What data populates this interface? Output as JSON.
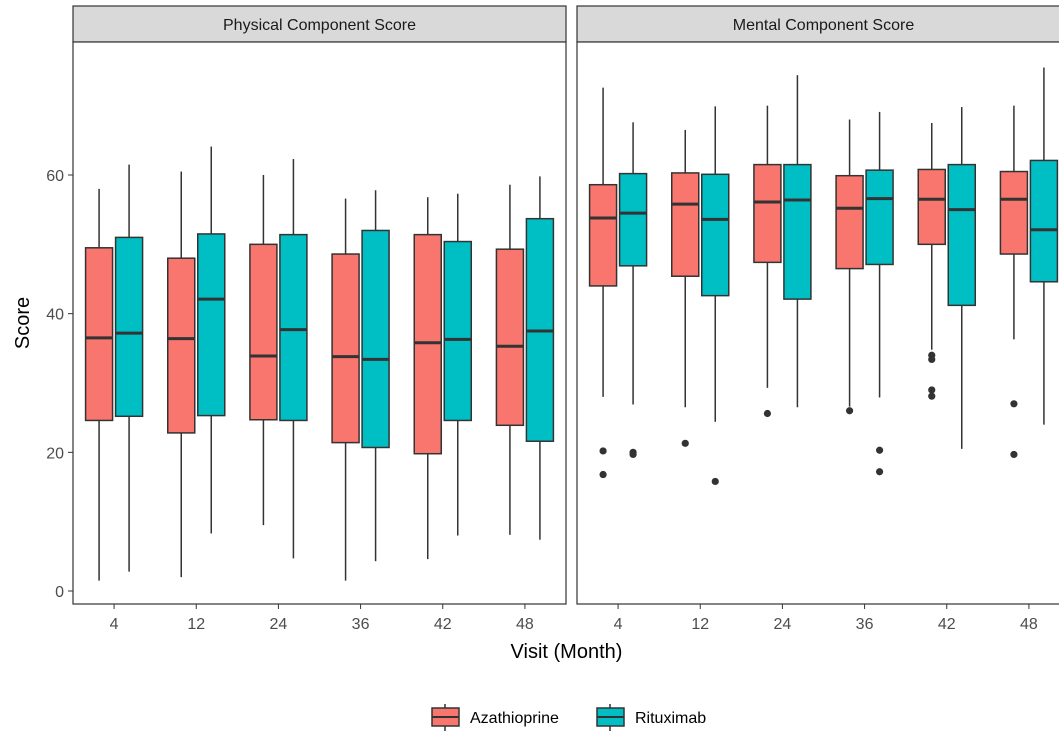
{
  "chart_data": {
    "type": "boxplot",
    "xlabel": "Visit (Month)",
    "ylabel": "Score",
    "ylim": [
      -2,
      79
    ],
    "y_ticks": [
      0,
      20,
      40,
      60
    ],
    "categories": [
      "4",
      "12",
      "24",
      "36",
      "42",
      "48"
    ],
    "legend": {
      "position": "bottom",
      "entries": [
        {
          "name": "Azathioprine",
          "color": "#F8766D"
        },
        {
          "name": "Rituximab",
          "color": "#00BFC4"
        }
      ]
    },
    "facets": [
      {
        "title": "Physical Component Score",
        "series": [
          {
            "name": "Azathioprine",
            "color": "#F8766D",
            "boxes": [
              {
                "min": 1.5,
                "q1": 24.6,
                "median": 36.5,
                "q3": 49.5,
                "max": 58.0,
                "outliers": []
              },
              {
                "min": 2.0,
                "q1": 22.8,
                "median": 36.4,
                "q3": 48.0,
                "max": 60.5,
                "outliers": []
              },
              {
                "min": 9.5,
                "q1": 24.7,
                "median": 33.9,
                "q3": 50.0,
                "max": 60.0,
                "outliers": []
              },
              {
                "min": 1.5,
                "q1": 21.4,
                "median": 33.8,
                "q3": 48.6,
                "max": 56.6,
                "outliers": []
              },
              {
                "min": 4.6,
                "q1": 19.8,
                "median": 35.8,
                "q3": 51.4,
                "max": 56.8,
                "outliers": []
              },
              {
                "min": 8.1,
                "q1": 23.9,
                "median": 35.3,
                "q3": 49.3,
                "max": 58.6,
                "outliers": []
              }
            ]
          },
          {
            "name": "Rituximab",
            "color": "#00BFC4",
            "boxes": [
              {
                "min": 2.8,
                "q1": 25.2,
                "median": 37.2,
                "q3": 51.0,
                "max": 61.5,
                "outliers": []
              },
              {
                "min": 8.3,
                "q1": 25.3,
                "median": 42.1,
                "q3": 51.5,
                "max": 64.1,
                "outliers": []
              },
              {
                "min": 4.7,
                "q1": 24.6,
                "median": 37.7,
                "q3": 51.4,
                "max": 62.3,
                "outliers": []
              },
              {
                "min": 4.3,
                "q1": 20.7,
                "median": 33.4,
                "q3": 52.0,
                "max": 57.8,
                "outliers": []
              },
              {
                "min": 8.0,
                "q1": 24.6,
                "median": 36.3,
                "q3": 50.4,
                "max": 57.3,
                "outliers": []
              },
              {
                "min": 7.4,
                "q1": 21.6,
                "median": 37.5,
                "q3": 53.7,
                "max": 59.8,
                "outliers": []
              }
            ]
          }
        ]
      },
      {
        "title": "Mental Component Score",
        "series": [
          {
            "name": "Azathioprine",
            "color": "#F8766D",
            "boxes": [
              {
                "min": 28.0,
                "q1": 44.0,
                "median": 53.8,
                "q3": 58.6,
                "max": 72.6,
                "outliers": [
                  20.2,
                  16.8
                ]
              },
              {
                "min": 26.5,
                "q1": 45.4,
                "median": 55.8,
                "q3": 60.3,
                "max": 66.5,
                "outliers": [
                  21.3
                ]
              },
              {
                "min": 29.3,
                "q1": 47.4,
                "median": 56.1,
                "q3": 61.5,
                "max": 70.0,
                "outliers": [
                  25.6
                ]
              },
              {
                "min": 26.6,
                "q1": 46.5,
                "median": 55.2,
                "q3": 59.9,
                "max": 68.0,
                "outliers": [
                  26.0
                ]
              },
              {
                "min": 34.8,
                "q1": 50.0,
                "median": 56.5,
                "q3": 60.8,
                "max": 67.5,
                "outliers": [
                  34.0,
                  33.4,
                  29.0,
                  28.1
                ]
              },
              {
                "min": 36.3,
                "q1": 48.6,
                "median": 56.5,
                "q3": 60.5,
                "max": 70.0,
                "outliers": [
                  27.0,
                  19.7
                ]
              }
            ]
          },
          {
            "name": "Rituximab",
            "color": "#00BFC4",
            "boxes": [
              {
                "min": 26.9,
                "q1": 46.9,
                "median": 54.5,
                "q3": 60.2,
                "max": 67.6,
                "outliers": [
                  20.0,
                  19.7
                ]
              },
              {
                "min": 24.4,
                "q1": 42.6,
                "median": 53.6,
                "q3": 60.1,
                "max": 69.9,
                "outliers": [
                  15.8
                ]
              },
              {
                "min": 26.5,
                "q1": 42.1,
                "median": 56.4,
                "q3": 61.5,
                "max": 74.4,
                "outliers": []
              },
              {
                "min": 27.9,
                "q1": 47.1,
                "median": 56.6,
                "q3": 60.7,
                "max": 69.1,
                "outliers": [
                  20.3,
                  17.2
                ]
              },
              {
                "min": 20.5,
                "q1": 41.2,
                "median": 55.0,
                "q3": 61.5,
                "max": 69.8,
                "outliers": []
              },
              {
                "min": 24.0,
                "q1": 44.6,
                "median": 52.1,
                "q3": 62.1,
                "max": 75.5,
                "outliers": []
              }
            ]
          }
        ]
      }
    ]
  }
}
